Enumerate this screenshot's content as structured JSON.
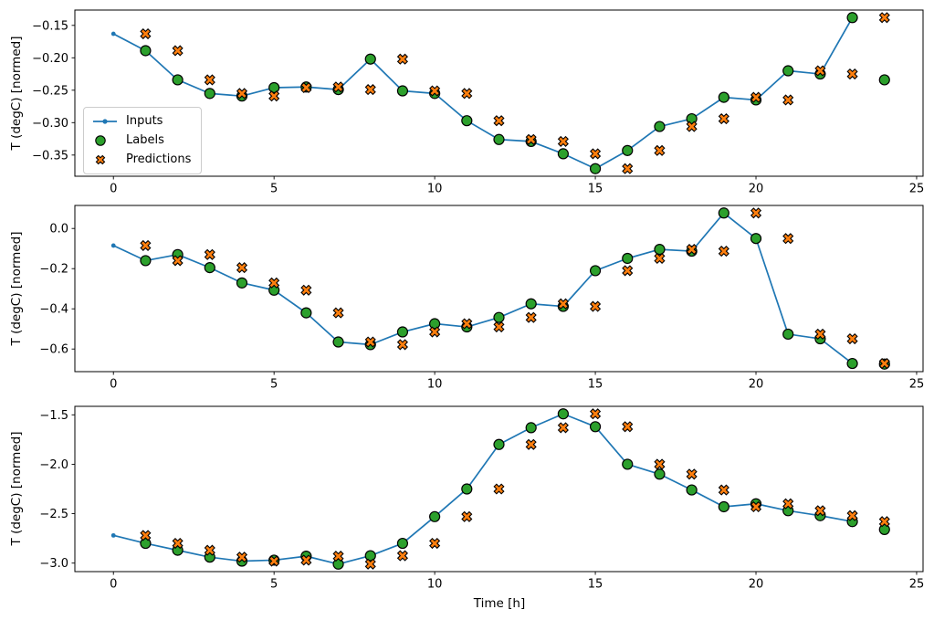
{
  "figure": {
    "xlabel": "Time [h]",
    "ylabel": "T (degC) [normed]"
  },
  "colors": {
    "inputs": "#1f77b4",
    "labels": "#2ca02c",
    "predictions": "#ff7f0e",
    "marker_edge": "#000000",
    "axis": "#000000",
    "legend_border": "#cccccc",
    "background": "#ffffff"
  },
  "legend": {
    "entries": [
      {
        "name": "inputs",
        "label": "Inputs",
        "marker": "line-with-dot"
      },
      {
        "name": "labels",
        "label": "Labels",
        "marker": "circle"
      },
      {
        "name": "predictions",
        "label": "Predictions",
        "marker": "X"
      }
    ]
  },
  "chart_data": [
    {
      "id": "subplot-1",
      "type": "line",
      "title": "",
      "xlabel": "",
      "ylabel": "T (degC) [normed]",
      "grid": false,
      "legend_position": "center left",
      "xlim": [
        -1.2,
        25.2
      ],
      "xticks": [
        0,
        5,
        10,
        15,
        20,
        25
      ],
      "xtick_labels": [
        "0",
        "5",
        "10",
        "15",
        "20",
        "25"
      ],
      "ytick_values": [
        -0.15,
        -0.2,
        -0.25,
        -0.3,
        -0.35
      ],
      "ytick_labels": [
        "−0.15",
        "−0.20",
        "−0.25",
        "−0.30",
        "−0.35"
      ],
      "series": [
        {
          "name": "Inputs",
          "type": "line",
          "marker": "dot",
          "color": "#1f77b4",
          "x": [
            0,
            1,
            2,
            3,
            4,
            5,
            6,
            7,
            8,
            9,
            10,
            11,
            12,
            13,
            14,
            15,
            16,
            17,
            18,
            19,
            20,
            21,
            22,
            23
          ],
          "y": [
            -0.163,
            -0.189,
            -0.234,
            -0.255,
            -0.259,
            -0.246,
            -0.245,
            -0.249,
            -0.202,
            -0.251,
            -0.255,
            -0.297,
            -0.326,
            -0.329,
            -0.348,
            -0.371,
            -0.343,
            -0.306,
            -0.294,
            -0.261,
            -0.265,
            -0.22,
            -0.225,
            -0.138
          ]
        },
        {
          "name": "Labels",
          "type": "scatter",
          "marker": "circle",
          "color": "#2ca02c",
          "x": [
            1,
            2,
            3,
            4,
            5,
            6,
            7,
            8,
            9,
            10,
            11,
            12,
            13,
            14,
            15,
            16,
            17,
            18,
            19,
            20,
            21,
            22,
            23,
            24
          ],
          "y": [
            -0.189,
            -0.234,
            -0.255,
            -0.259,
            -0.246,
            -0.245,
            -0.249,
            -0.202,
            -0.251,
            -0.255,
            -0.297,
            -0.326,
            -0.329,
            -0.348,
            -0.371,
            -0.343,
            -0.306,
            -0.294,
            -0.261,
            -0.265,
            -0.22,
            -0.225,
            -0.138,
            -0.234
          ]
        },
        {
          "name": "Predictions",
          "type": "scatter",
          "marker": "X",
          "color": "#ff7f0e",
          "x": [
            1,
            2,
            3,
            4,
            5,
            6,
            7,
            8,
            9,
            10,
            11,
            12,
            13,
            14,
            15,
            16,
            17,
            18,
            19,
            20,
            21,
            22,
            23,
            24
          ],
          "y": [
            -0.163,
            -0.189,
            -0.234,
            -0.255,
            -0.259,
            -0.246,
            -0.245,
            -0.249,
            -0.202,
            -0.251,
            -0.255,
            -0.297,
            -0.326,
            -0.329,
            -0.348,
            -0.371,
            -0.343,
            -0.306,
            -0.294,
            -0.261,
            -0.265,
            -0.22,
            -0.225,
            -0.138
          ]
        }
      ]
    },
    {
      "id": "subplot-2",
      "type": "line",
      "title": "",
      "xlabel": "",
      "ylabel": "T (degC) [normed]",
      "grid": false,
      "xlim": [
        -1.2,
        25.2
      ],
      "xticks": [
        0,
        5,
        10,
        15,
        20,
        25
      ],
      "xtick_labels": [
        "0",
        "5",
        "10",
        "15",
        "20",
        "25"
      ],
      "ytick_values": [
        0.0,
        -0.2,
        -0.4,
        -0.6
      ],
      "ytick_labels": [
        "0.0",
        "−0.2",
        "−0.4",
        "−0.6"
      ],
      "series": [
        {
          "name": "Inputs",
          "type": "line",
          "marker": "dot",
          "color": "#1f77b4",
          "x": [
            0,
            1,
            2,
            3,
            4,
            5,
            6,
            7,
            8,
            9,
            10,
            11,
            12,
            13,
            14,
            15,
            16,
            17,
            18,
            19,
            20,
            21,
            22,
            23
          ],
          "y": [
            -0.085,
            -0.16,
            -0.13,
            -0.195,
            -0.271,
            -0.307,
            -0.42,
            -0.565,
            -0.578,
            -0.515,
            -0.474,
            -0.49,
            -0.443,
            -0.375,
            -0.388,
            -0.21,
            -0.149,
            -0.104,
            -0.113,
            0.077,
            -0.05,
            -0.526,
            -0.549,
            -0.672
          ]
        },
        {
          "name": "Labels",
          "type": "scatter",
          "marker": "circle",
          "color": "#2ca02c",
          "x": [
            1,
            2,
            3,
            4,
            5,
            6,
            7,
            8,
            9,
            10,
            11,
            12,
            13,
            14,
            15,
            16,
            17,
            18,
            19,
            20,
            21,
            22,
            23,
            24
          ],
          "y": [
            -0.16,
            -0.13,
            -0.195,
            -0.271,
            -0.307,
            -0.42,
            -0.565,
            -0.578,
            -0.515,
            -0.474,
            -0.49,
            -0.443,
            -0.375,
            -0.388,
            -0.21,
            -0.149,
            -0.104,
            -0.113,
            0.077,
            -0.05,
            -0.526,
            -0.549,
            -0.672,
            -0.675
          ]
        },
        {
          "name": "Predictions",
          "type": "scatter",
          "marker": "X",
          "color": "#ff7f0e",
          "x": [
            1,
            2,
            3,
            4,
            5,
            6,
            7,
            8,
            9,
            10,
            11,
            12,
            13,
            14,
            15,
            16,
            17,
            18,
            19,
            20,
            21,
            22,
            23,
            24
          ],
          "y": [
            -0.085,
            -0.16,
            -0.13,
            -0.195,
            -0.271,
            -0.307,
            -0.42,
            -0.565,
            -0.578,
            -0.515,
            -0.474,
            -0.49,
            -0.443,
            -0.375,
            -0.388,
            -0.21,
            -0.149,
            -0.104,
            -0.113,
            0.077,
            -0.05,
            -0.526,
            -0.549,
            -0.672
          ]
        }
      ]
    },
    {
      "id": "subplot-3",
      "type": "line",
      "title": "",
      "xlabel": "Time [h]",
      "ylabel": "T (degC) [normed]",
      "grid": false,
      "xlim": [
        -1.2,
        25.2
      ],
      "xticks": [
        0,
        5,
        10,
        15,
        20,
        25
      ],
      "xtick_labels": [
        "0",
        "5",
        "10",
        "15",
        "20",
        "25"
      ],
      "ytick_values": [
        -1.5,
        -2.0,
        -2.5,
        -3.0
      ],
      "ytick_labels": [
        "−1.5",
        "−2.0",
        "−2.5",
        "−3.0"
      ],
      "series": [
        {
          "name": "Inputs",
          "type": "line",
          "marker": "dot",
          "color": "#1f77b4",
          "x": [
            0,
            1,
            2,
            3,
            4,
            5,
            6,
            7,
            8,
            9,
            10,
            11,
            12,
            13,
            14,
            15,
            16,
            17,
            18,
            19,
            20,
            21,
            22,
            23
          ],
          "y": [
            -2.72,
            -2.8,
            -2.87,
            -2.94,
            -2.98,
            -2.97,
            -2.93,
            -3.01,
            -2.925,
            -2.8,
            -2.53,
            -2.25,
            -1.8,
            -1.63,
            -1.49,
            -1.62,
            -2.0,
            -2.1,
            -2.26,
            -2.43,
            -2.4,
            -2.47,
            -2.52,
            -2.58
          ]
        },
        {
          "name": "Labels",
          "type": "scatter",
          "marker": "circle",
          "color": "#2ca02c",
          "x": [
            1,
            2,
            3,
            4,
            5,
            6,
            7,
            8,
            9,
            10,
            11,
            12,
            13,
            14,
            15,
            16,
            17,
            18,
            19,
            20,
            21,
            22,
            23,
            24
          ],
          "y": [
            -2.8,
            -2.87,
            -2.94,
            -2.98,
            -2.97,
            -2.93,
            -3.01,
            -2.925,
            -2.8,
            -2.53,
            -2.25,
            -1.8,
            -1.63,
            -1.49,
            -1.62,
            -2.0,
            -2.1,
            -2.26,
            -2.43,
            -2.4,
            -2.47,
            -2.52,
            -2.58,
            -2.66
          ]
        },
        {
          "name": "Predictions",
          "type": "scatter",
          "marker": "X",
          "color": "#ff7f0e",
          "x": [
            1,
            2,
            3,
            4,
            5,
            6,
            7,
            8,
            9,
            10,
            11,
            12,
            13,
            14,
            15,
            16,
            17,
            18,
            19,
            20,
            21,
            22,
            23,
            24
          ],
          "y": [
            -2.72,
            -2.8,
            -2.87,
            -2.94,
            -2.98,
            -2.97,
            -2.93,
            -3.01,
            -2.925,
            -2.8,
            -2.53,
            -2.25,
            -1.8,
            -1.63,
            -1.49,
            -1.62,
            -2.0,
            -2.1,
            -2.26,
            -2.43,
            -2.4,
            -2.47,
            -2.52,
            -2.58
          ]
        }
      ]
    }
  ]
}
